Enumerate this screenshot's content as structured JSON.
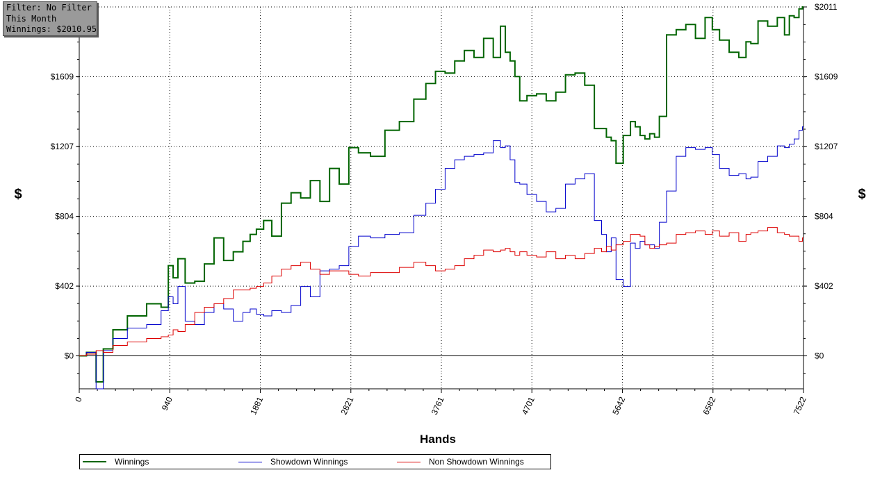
{
  "filter_box": {
    "line1": "Filter: No Filter",
    "line2": "This Month",
    "line3": "Winnings: $2010.95"
  },
  "chart_data": {
    "type": "line",
    "xlabel": "Hands",
    "ylabel": "$",
    "xlim": [
      0,
      7522
    ],
    "ylim": [
      -190,
      2011
    ],
    "x_ticks": [
      0,
      940,
      1881,
      2821,
      3761,
      4701,
      5642,
      6582,
      7522
    ],
    "x_tick_labels": [
      "0",
      "940",
      "1881",
      "2821",
      "3761",
      "4701",
      "5642",
      "6582",
      "7522"
    ],
    "y_ticks": [
      0,
      402,
      804,
      1207,
      1609,
      2011
    ],
    "y_tick_labels": [
      "$0",
      "$402",
      "$804",
      "$1207",
      "$1609",
      "$2011"
    ],
    "grid": true,
    "legend_position": "bottom",
    "series": [
      {
        "name": "Winnings",
        "color": "#006400",
        "x": [
          0,
          150,
          200,
          300,
          400,
          600,
          800,
          900,
          950,
          1000,
          1050,
          1150,
          1250,
          1350,
          1450,
          1550,
          1650,
          1750,
          1800,
          1880,
          1950,
          2050,
          2150,
          2250,
          2350,
          2450,
          2550,
          2650,
          2750,
          2850,
          2950,
          3100,
          3250,
          3400,
          3550,
          3650,
          3750,
          3850,
          3950,
          4050,
          4150,
          4250,
          4350,
          4400,
          4450,
          4500,
          4550,
          4600,
          4700,
          4800,
          4900,
          5000,
          5100,
          5200,
          5300,
          5400,
          5450,
          5500,
          5550,
          5600,
          5700,
          5750,
          5800,
          5850,
          5900,
          5950,
          6000,
          6050,
          6150,
          6250,
          6350,
          6450,
          6550,
          6600,
          6700,
          6800,
          6900,
          6950,
          7000,
          7100,
          7200,
          7300,
          7350,
          7400,
          7450,
          7500,
          7522
        ],
        "y": [
          0,
          20,
          -150,
          40,
          150,
          230,
          300,
          280,
          520,
          450,
          560,
          420,
          430,
          530,
          680,
          550,
          600,
          660,
          700,
          730,
          780,
          690,
          880,
          940,
          910,
          1010,
          890,
          1080,
          990,
          1200,
          1170,
          1150,
          1300,
          1350,
          1480,
          1570,
          1640,
          1630,
          1700,
          1760,
          1720,
          1830,
          1720,
          1900,
          1750,
          1700,
          1610,
          1470,
          1500,
          1510,
          1470,
          1520,
          1620,
          1630,
          1560,
          1310,
          1310,
          1260,
          1240,
          1110,
          1270,
          1350,
          1320,
          1270,
          1250,
          1280,
          1260,
          1380,
          1850,
          1880,
          1910,
          1830,
          1950,
          1880,
          1820,
          1750,
          1720,
          1810,
          1800,
          1930,
          1900,
          1950,
          1850,
          1960,
          1950,
          2000,
          2011
        ]
      },
      {
        "name": "Showdown Winnings",
        "color": "#0000cc",
        "x": [
          0,
          150,
          200,
          300,
          400,
          600,
          800,
          900,
          950,
          1000,
          1050,
          1150,
          1250,
          1350,
          1450,
          1550,
          1650,
          1750,
          1800,
          1880,
          1950,
          2050,
          2150,
          2250,
          2350,
          2450,
          2550,
          2650,
          2750,
          2850,
          2950,
          3100,
          3250,
          3400,
          3550,
          3650,
          3750,
          3850,
          3950,
          4050,
          4150,
          4250,
          4350,
          4400,
          4450,
          4500,
          4550,
          4600,
          4700,
          4800,
          4900,
          5000,
          5100,
          5200,
          5300,
          5400,
          5450,
          5500,
          5550,
          5600,
          5700,
          5750,
          5800,
          5850,
          5900,
          5950,
          6000,
          6050,
          6150,
          6250,
          6350,
          6450,
          6550,
          6600,
          6700,
          6800,
          6900,
          6950,
          7000,
          7100,
          7200,
          7300,
          7350,
          7400,
          7450,
          7500,
          7522
        ],
        "y": [
          0,
          20,
          -190,
          30,
          100,
          160,
          180,
          260,
          340,
          300,
          400,
          200,
          180,
          250,
          300,
          270,
          200,
          250,
          270,
          240,
          230,
          260,
          250,
          290,
          400,
          340,
          490,
          500,
          520,
          630,
          690,
          680,
          700,
          710,
          810,
          880,
          960,
          1080,
          1130,
          1150,
          1160,
          1170,
          1240,
          1200,
          1210,
          1130,
          1000,
          990,
          930,
          890,
          830,
          850,
          990,
          1020,
          1050,
          780,
          700,
          600,
          680,
          440,
          400,
          650,
          620,
          660,
          640,
          640,
          620,
          770,
          950,
          1150,
          1200,
          1190,
          1200,
          1160,
          1080,
          1040,
          1050,
          1020,
          1030,
          1120,
          1150,
          1210,
          1200,
          1220,
          1250,
          1300,
          1320
        ]
      },
      {
        "name": "Non Showdown Winnings",
        "color": "#dd0000",
        "x": [
          0,
          150,
          200,
          300,
          400,
          600,
          800,
          900,
          950,
          1000,
          1050,
          1150,
          1250,
          1350,
          1450,
          1550,
          1650,
          1750,
          1800,
          1880,
          1950,
          2050,
          2150,
          2250,
          2350,
          2450,
          2550,
          2650,
          2750,
          2850,
          2950,
          3100,
          3250,
          3400,
          3550,
          3650,
          3750,
          3850,
          3950,
          4050,
          4150,
          4250,
          4350,
          4400,
          4450,
          4500,
          4550,
          4600,
          4700,
          4800,
          4900,
          5000,
          5100,
          5200,
          5300,
          5400,
          5450,
          5500,
          5550,
          5600,
          5700,
          5750,
          5800,
          5850,
          5900,
          5950,
          6000,
          6050,
          6150,
          6250,
          6350,
          6450,
          6550,
          6600,
          6700,
          6800,
          6900,
          6950,
          7000,
          7100,
          7200,
          7300,
          7350,
          7400,
          7450,
          7500,
          7522
        ],
        "y": [
          0,
          10,
          30,
          20,
          60,
          80,
          100,
          110,
          120,
          150,
          140,
          180,
          250,
          280,
          300,
          330,
          380,
          380,
          390,
          400,
          420,
          460,
          500,
          520,
          540,
          500,
          470,
          490,
          490,
          470,
          460,
          480,
          480,
          510,
          540,
          520,
          490,
          500,
          520,
          560,
          580,
          610,
          600,
          610,
          620,
          600,
          580,
          600,
          580,
          570,
          600,
          560,
          580,
          560,
          590,
          620,
          600,
          630,
          610,
          640,
          660,
          700,
          700,
          690,
          640,
          620,
          630,
          640,
          650,
          700,
          710,
          720,
          700,
          720,
          690,
          710,
          660,
          700,
          710,
          720,
          740,
          710,
          700,
          690,
          690,
          660,
          680
        ]
      }
    ]
  }
}
